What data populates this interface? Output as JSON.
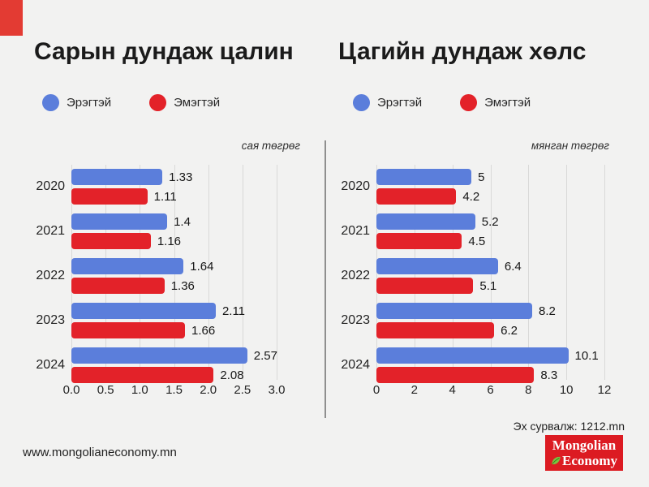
{
  "page": {
    "background": "#f2f2f1",
    "accent_color": "#e33b33",
    "website": "www.mongolianeconomy.mn",
    "source": "Эх сурвалж: 1212.mn",
    "logo": {
      "line1": "Mongolian",
      "line2": "Economy",
      "bg": "#dc1b22",
      "leaf_color": "#7dc242",
      "leaf_dark": "#2e7d1e"
    }
  },
  "legend": {
    "male": "Эрэгтэй",
    "female": "Эмэгтэй",
    "male_color": "#5b7edb",
    "female_color": "#e32229"
  },
  "chart_data": [
    {
      "type": "bar",
      "orientation": "horizontal",
      "title": "Сарын дундаж цалин",
      "unit_label": "сая төгрөг",
      "categories": [
        "2020",
        "2021",
        "2022",
        "2023",
        "2024"
      ],
      "series": [
        {
          "name": "Эрэгтэй",
          "color": "#5b7edb",
          "values": [
            1.33,
            1.4,
            1.64,
            2.11,
            2.57
          ]
        },
        {
          "name": "Эмэгтэй",
          "color": "#e32229",
          "values": [
            1.11,
            1.16,
            1.36,
            1.66,
            2.08
          ]
        }
      ],
      "xlim": [
        0,
        3
      ],
      "ticks": [
        "0.0",
        "0.5",
        "1.0",
        "1.5",
        "2.0",
        "2.5",
        "3.0"
      ],
      "tick_values": [
        0,
        0.5,
        1,
        1.5,
        2,
        2.5,
        3
      ],
      "grid": true,
      "legend_position": "top"
    },
    {
      "type": "bar",
      "orientation": "horizontal",
      "title": "Цагийн дундаж хөлс",
      "unit_label": "мянган төгрөг",
      "categories": [
        "2020",
        "2021",
        "2022",
        "2023",
        "2024"
      ],
      "series": [
        {
          "name": "Эрэгтэй",
          "color": "#5b7edb",
          "values": [
            5,
            5.2,
            6.4,
            8.2,
            10.1
          ]
        },
        {
          "name": "Эмэгтэй",
          "color": "#e32229",
          "values": [
            4.2,
            4.5,
            5.1,
            6.2,
            8.3
          ]
        }
      ],
      "xlim": [
        0,
        12
      ],
      "ticks": [
        "0",
        "2",
        "4",
        "6",
        "8",
        "10",
        "12"
      ],
      "tick_values": [
        0,
        2,
        4,
        6,
        8,
        10,
        12
      ],
      "grid": true,
      "legend_position": "top"
    }
  ]
}
